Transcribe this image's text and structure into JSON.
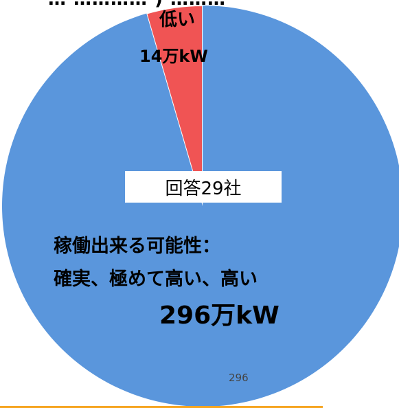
{
  "chart_data": {
    "type": "pie",
    "title": "",
    "slices": [
      {
        "name_lines": [
          "稼働出来る可能性：",
          "確実、極めて高い、高い"
        ],
        "value": 296,
        "value_label": "296万kW",
        "data_label": "296",
        "color": "#5a96dc"
      },
      {
        "name_lines": [
          "低い"
        ],
        "value": 14,
        "value_label": "14万kW",
        "color": "#f05454"
      }
    ],
    "center_label": "回答29社",
    "top_cut_text": "… ………… ) ………"
  },
  "colors": {
    "accent_rule": "#f6a623"
  }
}
